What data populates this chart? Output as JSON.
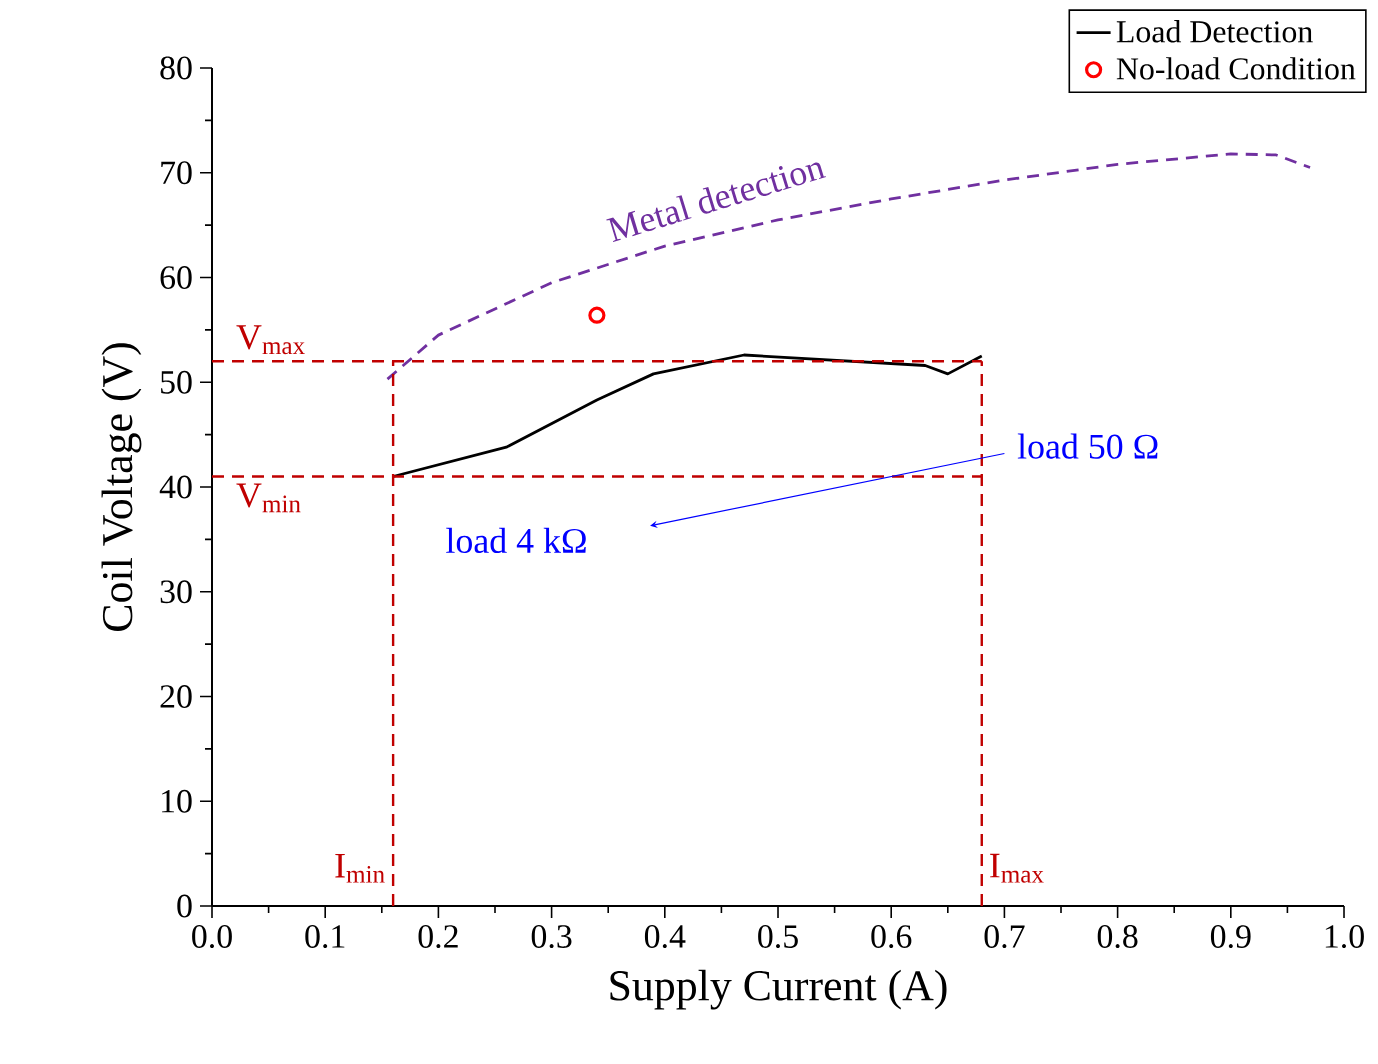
{
  "chart_data": {
    "type": "line",
    "xlabel": "Supply Current (A)",
    "ylabel": "Coil Voltage (V)",
    "xlim": [
      0,
      1
    ],
    "ylim": [
      0,
      80
    ],
    "xticks": [
      {
        "value": 0,
        "label": "0.0"
      },
      {
        "value": 0.1,
        "label": "0.1"
      },
      {
        "value": 0.2,
        "label": "0.2"
      },
      {
        "value": 0.3,
        "label": "0.3"
      },
      {
        "value": 0.4,
        "label": "0.4"
      },
      {
        "value": 0.5,
        "label": "0.5"
      },
      {
        "value": 0.6,
        "label": "0.6"
      },
      {
        "value": 0.7,
        "label": "0.7"
      },
      {
        "value": 0.8,
        "label": "0.8"
      },
      {
        "value": 0.9,
        "label": "0.9"
      },
      {
        "value": 1,
        "label": "1.0"
      }
    ],
    "yticks": [
      0,
      10,
      20,
      30,
      40,
      50,
      60,
      70,
      80
    ],
    "legend": "top right",
    "series": [
      {
        "name": "Load Detection",
        "color": "#000000",
        "marker": "none",
        "line_style": "solid",
        "x": [
          0.16,
          0.26,
          0.34,
          0.39,
          0.47,
          0.63,
          0.65,
          0.68
        ],
        "values": [
          41,
          43.8,
          48.3,
          50.8,
          52.6,
          51.6,
          50.8,
          52.5
        ]
      },
      {
        "name": "No-load Condition",
        "type": "scatter",
        "color": "#ff0000",
        "marker": "circle",
        "x": [
          0.34
        ],
        "values": [
          56.4
        ]
      },
      {
        "color": "#7030a0",
        "marker": "none",
        "line_style": "dashed",
        "x": [
          0.155,
          0.2,
          0.3,
          0.4,
          0.5,
          0.6,
          0.7,
          0.8,
          0.9,
          0.94,
          0.97
        ],
        "values": [
          50.3,
          54.5,
          59.5,
          63,
          65.5,
          67.5,
          69.3,
          70.8,
          71.8,
          71.7,
          70.5
        ]
      }
    ],
    "ref_lines": [
      {
        "axis": "y",
        "value": 52,
        "label": "V$_{max}$",
        "color": "#c00000",
        "line_style": "dashed"
      },
      {
        "axis": "y",
        "value": 41,
        "label": "V$_{min}$",
        "color": "#c00000",
        "line_style": "dashed"
      },
      {
        "axis": "x",
        "value": 0.16,
        "label": "I$_{min}$",
        "color": "#c00000",
        "line_style": "dashed"
      },
      {
        "axis": "x",
        "value": 0.68,
        "label": "I$_{max}$",
        "color": "#c00000",
        "line_style": "dashed"
      }
    ],
    "annotations": [
      "Metal detection",
      "load 50 Ω",
      "load 4 kΩ"
    ]
  }
}
